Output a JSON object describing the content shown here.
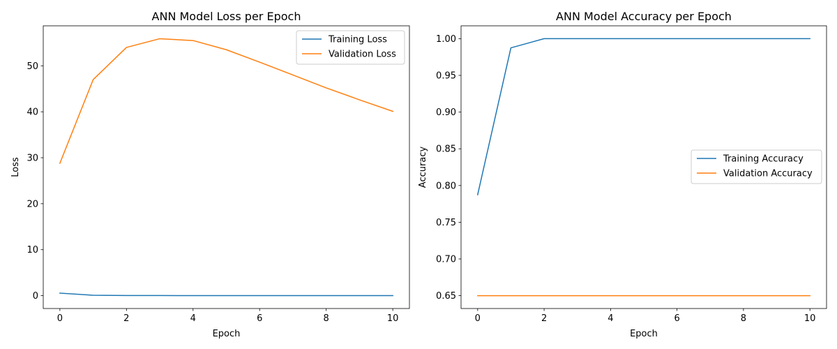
{
  "chart_data": [
    {
      "type": "line",
      "title": "ANN Model Loss per Epoch",
      "xlabel": "Epoch",
      "ylabel": "Loss",
      "xlim": [
        -0.5,
        10.5
      ],
      "ylim": [
        -2.8,
        58.7
      ],
      "xticks": [
        0,
        2,
        4,
        6,
        8,
        10
      ],
      "yticks": [
        0,
        10,
        20,
        30,
        40,
        50
      ],
      "xtick_labels": [
        "0",
        "2",
        "4",
        "6",
        "8",
        "10"
      ],
      "ytick_labels": [
        "0",
        "10",
        "20",
        "30",
        "40",
        "50"
      ],
      "grid": false,
      "legend_position": "upper right",
      "x": [
        0,
        1,
        2,
        3,
        4,
        5,
        6,
        7,
        8,
        9,
        10
      ],
      "series": [
        {
          "name": "Training Loss",
          "color": "#1f77b4",
          "values": [
            0.55,
            0.08,
            0.03,
            0.02,
            0.015,
            0.012,
            0.01,
            0.01,
            0.01,
            0.01,
            0.01
          ]
        },
        {
          "name": "Validation Loss",
          "color": "#ff7f0e",
          "values": [
            28.8,
            47.0,
            54.0,
            55.9,
            55.5,
            53.5,
            50.8,
            48.0,
            45.2,
            42.6,
            40.1
          ]
        }
      ]
    },
    {
      "type": "line",
      "title": "ANN Model Accuracy per Epoch",
      "xlabel": "Epoch",
      "ylabel": "Accuracy",
      "xlim": [
        -0.5,
        10.5
      ],
      "ylim": [
        0.6325,
        1.0175
      ],
      "xticks": [
        0,
        2,
        4,
        6,
        8,
        10
      ],
      "yticks": [
        0.65,
        0.7,
        0.75,
        0.8,
        0.85,
        0.9,
        0.95,
        1.0
      ],
      "xtick_labels": [
        "0",
        "2",
        "4",
        "6",
        "8",
        "10"
      ],
      "ytick_labels": [
        "0.65",
        "0.70",
        "0.75",
        "0.80",
        "0.85",
        "0.90",
        "0.95",
        "1.00"
      ],
      "grid": false,
      "legend_position": "center right",
      "x": [
        0,
        1,
        2,
        3,
        4,
        5,
        6,
        7,
        8,
        9,
        10
      ],
      "series": [
        {
          "name": "Training Accuracy",
          "color": "#1f77b4",
          "values": [
            0.7875,
            0.9875,
            1.0,
            1.0,
            1.0,
            1.0,
            1.0,
            1.0,
            1.0,
            1.0,
            1.0
          ]
        },
        {
          "name": "Validation Accuracy",
          "color": "#ff7f0e",
          "values": [
            0.65,
            0.65,
            0.65,
            0.65,
            0.65,
            0.65,
            0.65,
            0.65,
            0.65,
            0.65,
            0.65
          ]
        }
      ]
    }
  ]
}
